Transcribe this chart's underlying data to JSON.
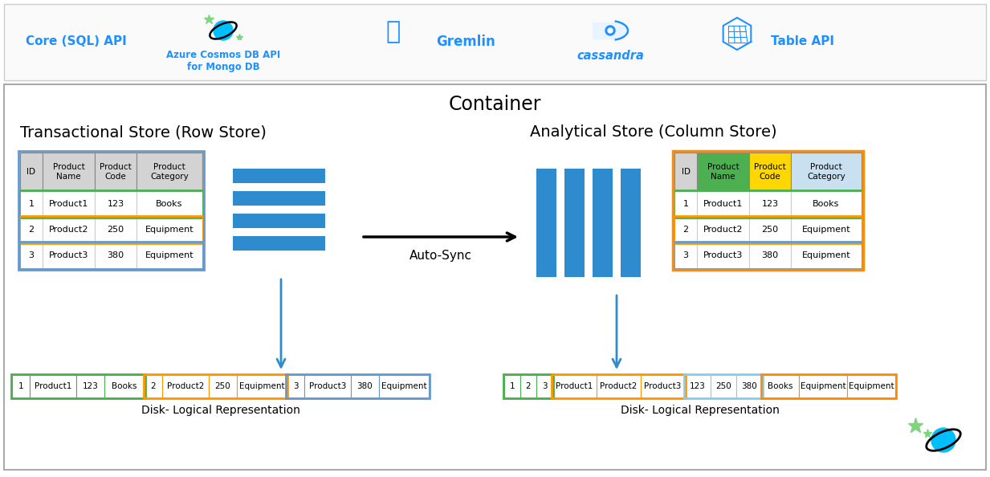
{
  "title_container": "Container",
  "title_transactional": "Transactional Store (Row Store)",
  "title_analytical": "Analytical Store (Column Store)",
  "autosync_label": "Auto-Sync",
  "disk_label": "Disk- Logical Representation",
  "table_headers": [
    "ID",
    "Product\nName",
    "Product\nCode",
    "Product\nCategory"
  ],
  "table_rows": [
    [
      "1",
      "Product1",
      "123",
      "Books"
    ],
    [
      "2",
      "Product2",
      "250",
      "Equipment"
    ],
    [
      "3",
      "Product3",
      "380",
      "Equipment"
    ]
  ],
  "row_colors": [
    "#4CAF50",
    "#FF9800",
    "#6699CC"
  ],
  "header_bg": "#D3D3D3",
  "col_header_colors": [
    "#D3D3D3",
    "#4CAF50",
    "#FFD700",
    "#C8E0F0"
  ],
  "bar_color": "#2E8BCD",
  "arrow_color": "#2E8BCD",
  "bg_color": "#FFFFFF",
  "border_color": "#AAAAAA",
  "text_color_blue": "#1E90FF",
  "container_border": "#AAAAAA",
  "analytical_outer_border": "#FF8C00",
  "transactional_outer_border": "#6699CC"
}
